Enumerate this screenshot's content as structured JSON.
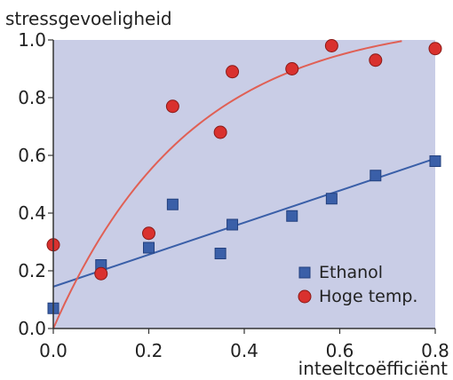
{
  "chart_data": {
    "type": "scatter",
    "ylabel": "stressgevoeligheid",
    "xlabel": "inteeltcoëfficiënt",
    "xlim": [
      0.0,
      0.8
    ],
    "ylim": [
      0.0,
      1.0
    ],
    "x_ticks": [
      "0.0",
      "0.2",
      "0.4",
      "0.6",
      "0.8"
    ],
    "y_ticks": [
      "0.0",
      "0.2",
      "0.4",
      "0.6",
      "0.8",
      "1.0"
    ],
    "legend_position": "bottom-right",
    "series": [
      {
        "name": "Ethanol",
        "marker": "square",
        "color": "#3a5fa8",
        "trend_color": "#3a5fa8",
        "points": [
          {
            "x": 0.0,
            "y": 0.07
          },
          {
            "x": 0.1,
            "y": 0.22
          },
          {
            "x": 0.2,
            "y": 0.28
          },
          {
            "x": 0.25,
            "y": 0.43
          },
          {
            "x": 0.35,
            "y": 0.26
          },
          {
            "x": 0.375,
            "y": 0.36
          },
          {
            "x": 0.5,
            "y": 0.39
          },
          {
            "x": 0.583,
            "y": 0.45
          },
          {
            "x": 0.675,
            "y": 0.53
          },
          {
            "x": 0.8,
            "y": 0.58
          }
        ],
        "trend": {
          "kind": "linear",
          "intercept": 0.145,
          "slope": 0.555,
          "x_end": 0.8
        }
      },
      {
        "name": "Hoge temp.",
        "marker": "circle",
        "color": "#d9312e",
        "trend_color": "#e06055",
        "points": [
          {
            "x": 0.0,
            "y": 0.29
          },
          {
            "x": 0.1,
            "y": 0.19
          },
          {
            "x": 0.2,
            "y": 0.33
          },
          {
            "x": 0.25,
            "y": 0.77
          },
          {
            "x": 0.35,
            "y": 0.68
          },
          {
            "x": 0.375,
            "y": 0.89
          },
          {
            "x": 0.5,
            "y": 0.9
          },
          {
            "x": 0.583,
            "y": 0.98
          },
          {
            "x": 0.675,
            "y": 0.93
          },
          {
            "x": 0.8,
            "y": 0.97
          }
        ],
        "trend": {
          "kind": "saturating",
          "asymptote": 1.08,
          "rate": 3.5,
          "x_end": 0.73
        }
      }
    ],
    "colors": {
      "plot_background": "#c9cde6",
      "axis": "#333333"
    }
  }
}
